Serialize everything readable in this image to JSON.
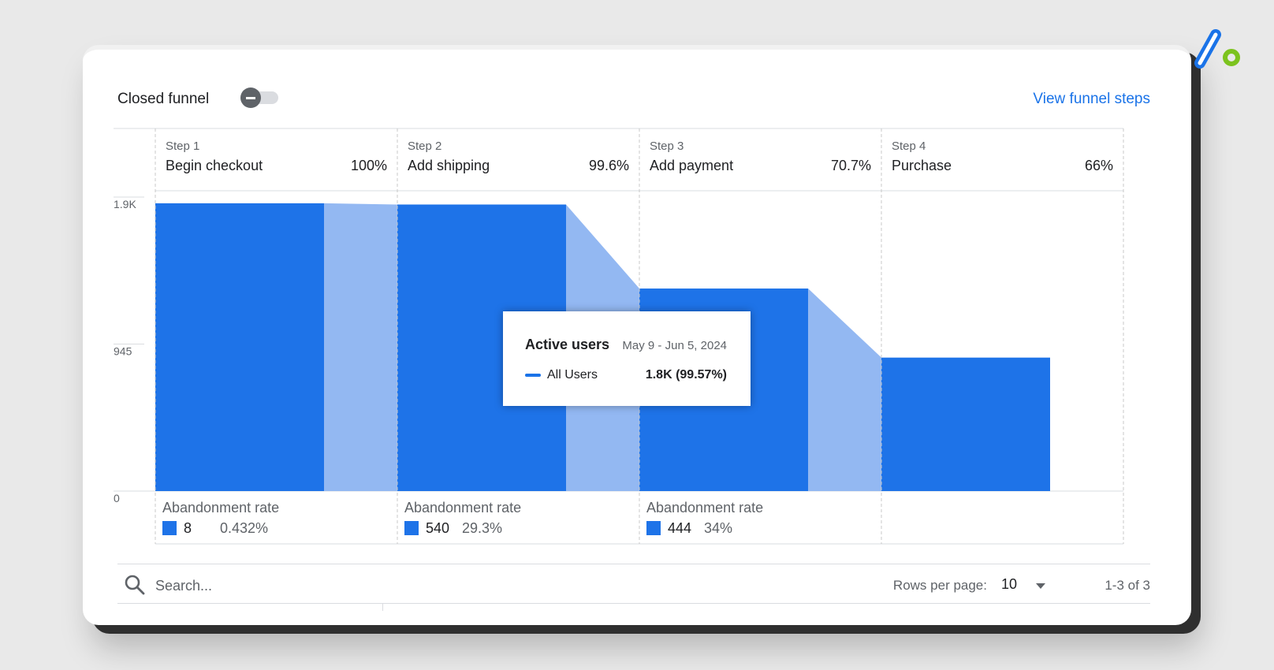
{
  "header": {
    "title": "Closed funnel",
    "view_link": "View funnel steps"
  },
  "colors": {
    "bar": "#1e73e8",
    "connector": "#93b8f2",
    "accent": "#1a73e8"
  },
  "chart_data": {
    "type": "bar",
    "title": "",
    "categories": [
      "Begin checkout",
      "Add shipping",
      "Add payment",
      "Purchase"
    ],
    "step_labels": [
      "Step 1",
      "Step 2",
      "Step 3",
      "Step 4"
    ],
    "completion_rates": [
      "100%",
      "99.6%",
      "70.7%",
      "66%"
    ],
    "series": [
      {
        "values": [
          1850,
          1842,
          1302,
          858
        ]
      }
    ],
    "yticks": [
      "1.9K",
      "945",
      "0"
    ],
    "ylim": [
      0,
      1890
    ],
    "grid": true,
    "abandonment": {
      "label": "Abandonment rate",
      "items": [
        {
          "count": "8",
          "rate": "0.432%"
        },
        {
          "count": "540",
          "rate": "29.3%"
        },
        {
          "count": "444",
          "rate": "34%"
        }
      ]
    }
  },
  "tooltip": {
    "title": "Active users",
    "date_range": "May 9 - Jun 5, 2024",
    "series": "All Users",
    "value": "1.8K (99.57%)"
  },
  "table": {
    "search_placeholder": "Search...",
    "rows_per_page_label": "Rows per page:",
    "rows_per_page": "10",
    "pagination": "1-3 of 3"
  }
}
